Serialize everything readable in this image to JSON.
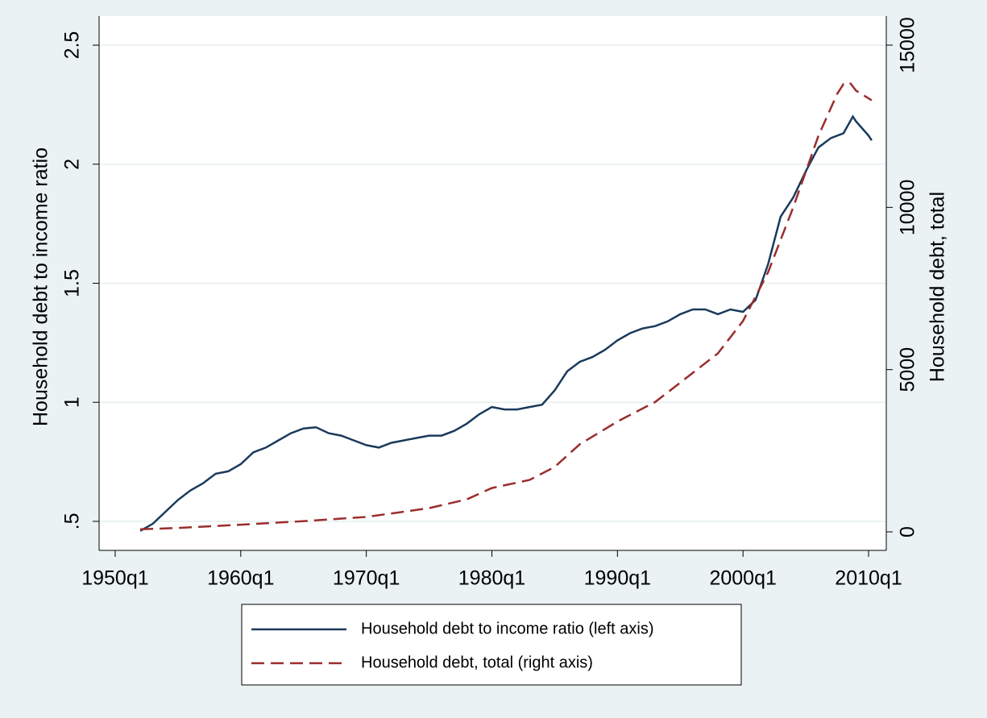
{
  "chart_data": {
    "type": "line",
    "ylabel": "Household debt to income ratio",
    "y2label": "Household debt, total",
    "xlim": [
      1948.72,
      2011.41
    ],
    "xticks": [
      {
        "value": 1950,
        "label": "1950q1"
      },
      {
        "value": 1960,
        "label": "1960q1"
      },
      {
        "value": 1970,
        "label": "1970q1"
      },
      {
        "value": 1980,
        "label": "1980q1"
      },
      {
        "value": 1990,
        "label": "1990q1"
      },
      {
        "value": 2000,
        "label": "2000q1"
      },
      {
        "value": 2010,
        "label": "2010q1"
      }
    ],
    "ylim": [
      0.378,
      2.622
    ],
    "yticks": [
      {
        "value": 0.5,
        "label": ".5"
      },
      1,
      1.5,
      2,
      2.5
    ],
    "y2lim": [
      -571,
      15894
    ],
    "y2ticks": [
      0,
      5000,
      10000,
      15000
    ],
    "grid": true,
    "series": [
      {
        "name": "Household debt to income ratio (left axis)",
        "color": "#1a3a5c",
        "dash": false,
        "x": [
          "1952q1",
          "1953q1",
          "1954q1",
          "1955q1",
          "1956q1",
          "1957q1",
          "1958q1",
          "1959q1",
          "1960q1",
          "1961q1",
          "1962q1",
          "1963q1",
          "1964q1",
          "1965q1",
          "1966q1",
          "1967q1",
          "1968q1",
          "1969q1",
          "1970q1",
          "1971q1",
          "1972q1",
          "1973q1",
          "1974q1",
          "1975q1",
          "1976q1",
          "1977q1",
          "1978q1",
          "1979q1",
          "1980q1",
          "1981q1",
          "1982q1",
          "1983q1",
          "1984q1",
          "1985q1",
          "1986q1",
          "1987q1",
          "1988q1",
          "1989q1",
          "1990q1",
          "1991q1",
          "1992q1",
          "1993q1",
          "1994q1",
          "1995q1",
          "1996q1",
          "1997q1",
          "1998q1",
          "1999q1",
          "2000q1",
          "2001q1",
          "2002q1",
          "2003q1",
          "2004q1",
          "2005q1",
          "2006q1",
          "2007q1",
          "2008q1",
          "2008q4",
          "2009q1",
          "2010q1",
          "2010q2"
        ],
        "values": [
          0.46,
          0.49,
          0.54,
          0.59,
          0.63,
          0.66,
          0.7,
          0.71,
          0.74,
          0.79,
          0.81,
          0.84,
          0.87,
          0.89,
          0.895,
          0.87,
          0.86,
          0.84,
          0.82,
          0.81,
          0.83,
          0.84,
          0.85,
          0.86,
          0.86,
          0.88,
          0.91,
          0.95,
          0.98,
          0.97,
          0.97,
          0.98,
          0.99,
          1.05,
          1.13,
          1.17,
          1.19,
          1.22,
          1.26,
          1.29,
          1.31,
          1.32,
          1.34,
          1.37,
          1.39,
          1.39,
          1.37,
          1.39,
          1.38,
          1.43,
          1.58,
          1.78,
          1.86,
          1.97,
          2.07,
          2.11,
          2.13,
          2.2,
          2.18,
          2.12,
          2.1
        ]
      },
      {
        "name": "Household debt, total (right axis)",
        "color": "#9b2d2d",
        "dash": true,
        "axis": "y2",
        "x": [
          "1952q1",
          "1955q1",
          "1960q1",
          "1965q1",
          "1970q1",
          "1975q1",
          "1978q1",
          "1980q1",
          "1983q1",
          "1985q1",
          "1987q1",
          "1990q1",
          "1993q1",
          "1995q1",
          "1998q1",
          "2000q1",
          "2002q1",
          "2004q1",
          "2006q1",
          "2007q3",
          "2008q1",
          "2008q3",
          "2009q1",
          "2010q2"
        ],
        "values": [
          80,
          120,
          220,
          330,
          460,
          730,
          1000,
          1350,
          1600,
          2000,
          2700,
          3400,
          4000,
          4600,
          5500,
          6500,
          8000,
          10000,
          12200,
          13500,
          13800,
          13850,
          13600,
          13300
        ]
      }
    ]
  }
}
